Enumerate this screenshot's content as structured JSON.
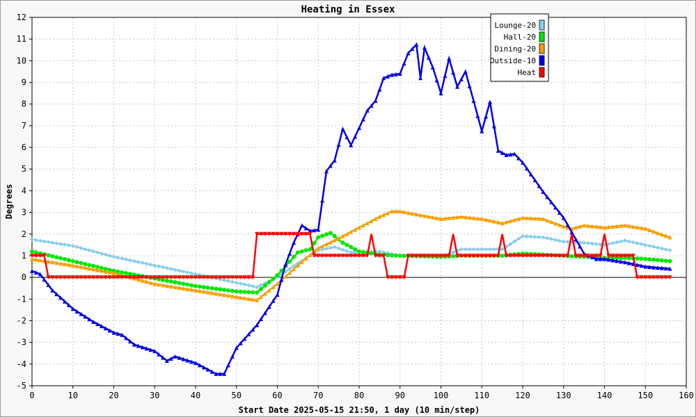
{
  "chart_data": {
    "type": "line",
    "title": "Heating in Essex",
    "xlabel": "Start Date 2025-05-15 21:50, 1 day (10 min/step)",
    "ylabel": "Degrees",
    "xlim": [
      0,
      160
    ],
    "ylim": [
      -5,
      12
    ],
    "xticks": [
      "0",
      "10",
      "20",
      "30",
      "40",
      "50",
      "60",
      "70",
      "80",
      "90",
      "100",
      "110",
      "120",
      "130",
      "140",
      "150",
      "160"
    ],
    "yticks": [
      "-5",
      "-4",
      "-3",
      "-2",
      "-1",
      "0",
      "1",
      "2",
      "3",
      "4",
      "5",
      "6",
      "7",
      "8",
      "9",
      "10",
      "11",
      "12"
    ],
    "grid": true,
    "legend_position": "top-right",
    "series": [
      {
        "name": "Lounge-20",
        "color": "#87ceeb",
        "marker": "diamond",
        "x": [
          0,
          10,
          20,
          30,
          40,
          50,
          55,
          60,
          65,
          70,
          74,
          78,
          85,
          90,
          100,
          105,
          110,
          115,
          120,
          125,
          130,
          135,
          140,
          145,
          150,
          156
        ],
        "y": [
          1.75,
          1.45,
          0.95,
          0.55,
          0.15,
          -0.25,
          -0.45,
          0.0,
          0.65,
          1.25,
          1.4,
          1.15,
          1.2,
          1.0,
          0.95,
          1.3,
          1.3,
          1.3,
          1.9,
          1.85,
          1.65,
          1.6,
          1.5,
          1.7,
          1.5,
          1.25
        ]
      },
      {
        "name": "Hall-20",
        "color": "#00e600",
        "marker": "circle",
        "x": [
          0,
          10,
          20,
          30,
          40,
          50,
          55,
          60,
          65,
          68,
          70,
          73,
          76,
          80,
          85,
          90,
          100,
          105,
          110,
          115,
          120,
          125,
          130,
          135,
          140,
          145,
          150,
          156
        ],
        "y": [
          1.2,
          0.75,
          0.3,
          -0.05,
          -0.4,
          -0.65,
          -0.7,
          0.1,
          1.15,
          1.3,
          1.85,
          2.05,
          1.6,
          1.2,
          1.05,
          1.0,
          0.95,
          1.0,
          1.0,
          1.0,
          1.1,
          1.05,
          1.0,
          0.95,
          0.9,
          0.9,
          0.85,
          0.75
        ]
      },
      {
        "name": "Dining-20",
        "color": "#f5a000",
        "marker": "triangle",
        "x": [
          0,
          10,
          20,
          30,
          40,
          50,
          55,
          60,
          65,
          70,
          75,
          80,
          85,
          88,
          90,
          100,
          105,
          110,
          115,
          120,
          125,
          130,
          132,
          135,
          140,
          145,
          150,
          156
        ],
        "y": [
          0.85,
          0.55,
          0.2,
          -0.3,
          -0.6,
          -0.9,
          -1.05,
          -0.3,
          0.55,
          1.35,
          1.8,
          2.3,
          2.8,
          3.05,
          3.05,
          2.7,
          2.8,
          2.7,
          2.5,
          2.75,
          2.7,
          2.35,
          2.25,
          2.4,
          2.3,
          2.4,
          2.25,
          1.85
        ]
      },
      {
        "name": "Outside-10",
        "color": "#0000e6",
        "marker": "triangle",
        "x": [
          0,
          2,
          5,
          10,
          15,
          20,
          22,
          25,
          30,
          33,
          35,
          40,
          45,
          47,
          50,
          55,
          60,
          62,
          64,
          66,
          68,
          70,
          72,
          74,
          76,
          78,
          80,
          82,
          84,
          86,
          88,
          90,
          92,
          94,
          95,
          96,
          98,
          100,
          102,
          104,
          106,
          108,
          110,
          112,
          114,
          116,
          118,
          120,
          125,
          130,
          135,
          138,
          140,
          145,
          150,
          156
        ],
        "y": [
          0.3,
          0.15,
          -0.6,
          -1.45,
          -2.05,
          -2.55,
          -2.65,
          -3.1,
          -3.4,
          -3.85,
          -3.65,
          -3.95,
          -4.45,
          -4.45,
          -3.25,
          -2.2,
          -0.8,
          0.6,
          1.6,
          2.4,
          2.15,
          2.2,
          4.9,
          5.4,
          6.85,
          6.1,
          6.9,
          7.7,
          8.15,
          9.2,
          9.35,
          9.4,
          10.35,
          10.75,
          9.2,
          10.6,
          9.7,
          8.5,
          10.1,
          8.8,
          9.5,
          8.15,
          6.75,
          8.1,
          5.85,
          5.65,
          5.7,
          5.3,
          3.95,
          2.75,
          1.1,
          0.85,
          0.85,
          0.7,
          0.5,
          0.4
        ]
      },
      {
        "name": "Heat",
        "color": "#ff0000",
        "marker": "triangle-down",
        "x": [
          0,
          3,
          4,
          54,
          55,
          68,
          69,
          82,
          83,
          84,
          86,
          87,
          91,
          92,
          102,
          103,
          104,
          114,
          115,
          116,
          131,
          132,
          133,
          139,
          140,
          141,
          147,
          148,
          156
        ],
        "y": [
          1,
          1,
          0,
          0,
          2,
          2,
          1,
          1,
          2,
          1,
          1,
          0,
          0,
          1,
          1,
          2,
          1,
          1,
          2,
          1,
          1,
          2,
          1,
          1,
          2,
          1,
          1,
          0,
          0
        ]
      }
    ]
  }
}
